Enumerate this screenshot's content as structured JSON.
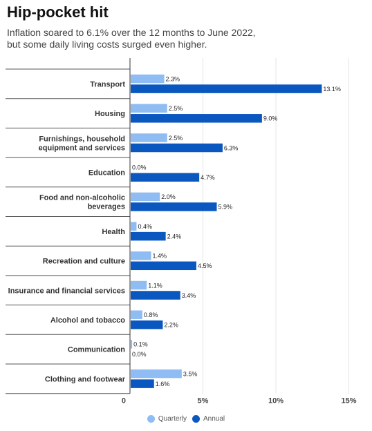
{
  "chart_data": {
    "type": "bar",
    "orientation": "horizontal",
    "title": "Hip-pocket hit",
    "subtitle_lines": [
      "Inflation soared to 6.1% over the 12 months to June 2022,",
      "but some daily living costs surged even higher."
    ],
    "categories": [
      [
        "Transport"
      ],
      [
        "Housing"
      ],
      [
        "Furnishings, household",
        "equipment and services"
      ],
      [
        "Education"
      ],
      [
        "Food and non-alcoholic",
        "beverages"
      ],
      [
        "Health"
      ],
      [
        "Recreation and culture"
      ],
      [
        "Insurance and financial services"
      ],
      [
        "Alcohol and tobacco"
      ],
      [
        "Communication"
      ],
      [
        "Clothing and footwear"
      ]
    ],
    "series": [
      {
        "name": "Quarterly",
        "color": "#8fbcf2",
        "values": [
          2.3,
          2.5,
          2.5,
          0.0,
          2.0,
          0.4,
          1.4,
          1.1,
          0.8,
          0.1,
          3.5
        ],
        "labels": [
          "2.3%",
          "2.5%",
          "2.5%",
          "0.0%",
          "2.0%",
          "0.4%",
          "1.4%",
          "1.1%",
          "0.8%",
          "0.1%",
          "3.5%"
        ]
      },
      {
        "name": "Annual",
        "color": "#0b57c0",
        "values": [
          13.1,
          9.0,
          6.3,
          4.7,
          5.9,
          2.4,
          4.5,
          3.4,
          2.2,
          0.0,
          1.6
        ],
        "labels": [
          "13.1%",
          "9.0%",
          "6.3%",
          "4.7%",
          "5.9%",
          "2.4%",
          "4.5%",
          "3.4%",
          "2.2%",
          "0.0%",
          "1.6%"
        ]
      }
    ],
    "xlim": [
      0,
      15
    ],
    "x_ticks": [
      0,
      5,
      10,
      15
    ],
    "x_tick_labels": [
      "0",
      "5%",
      "10%",
      "15%"
    ],
    "grid": true,
    "legend_position": "bottom-center"
  }
}
